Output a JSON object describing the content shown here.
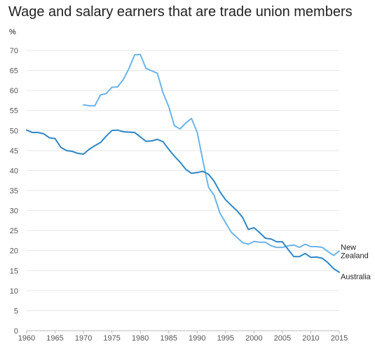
{
  "chart_data": {
    "type": "line",
    "title": "Wage and salary earners that are trade union members",
    "ylabel": "%",
    "xlabel": "",
    "xlim": [
      1960,
      2015
    ],
    "ylim": [
      0,
      70
    ],
    "x_ticks": [
      1960,
      1965,
      1970,
      1975,
      1980,
      1985,
      1990,
      1995,
      2000,
      2005,
      2010,
      2015
    ],
    "y_ticks": [
      0,
      5,
      10,
      15,
      20,
      25,
      30,
      35,
      40,
      45,
      50,
      55,
      60,
      65,
      70
    ],
    "grid": "horizontal",
    "series": [
      {
        "name": "New Zealand",
        "label_lines": [
          "New",
          "Zealand"
        ],
        "color": "#6cb4e8",
        "x": [
          1970,
          1971,
          1972,
          1973,
          1974,
          1975,
          1976,
          1977,
          1978,
          1979,
          1980,
          1981,
          1982,
          1983,
          1984,
          1985,
          1986,
          1987,
          1988,
          1989,
          1990,
          1991,
          1992,
          1993,
          1994,
          1995,
          1996,
          1997,
          1998,
          1999,
          2000,
          2001,
          2002,
          2003,
          2004,
          2005,
          2006,
          2007,
          2008,
          2009,
          2010,
          2011,
          2012,
          2013,
          2014,
          2015
        ],
        "values": [
          56.4,
          56.2,
          56.2,
          58.9,
          59.2,
          60.8,
          60.9,
          62.7,
          65.5,
          68.9,
          69.0,
          65.5,
          64.9,
          64.3,
          59.4,
          56.0,
          51.2,
          50.4,
          51.9,
          53.0,
          49.6,
          42.5,
          35.8,
          33.8,
          29.4,
          27.0,
          24.6,
          23.3,
          22.0,
          21.6,
          22.3,
          22.1,
          22.1,
          21.2,
          20.8,
          20.8,
          21.2,
          21.4,
          20.8,
          21.6,
          21.0,
          21.0,
          20.8,
          19.8,
          18.8,
          19.9
        ]
      },
      {
        "name": "Australia",
        "label_lines": [
          "Australia"
        ],
        "color": "#2f87c6",
        "x": [
          1960,
          1961,
          1962,
          1963,
          1964,
          1965,
          1966,
          1967,
          1968,
          1969,
          1970,
          1971,
          1972,
          1973,
          1974,
          1975,
          1976,
          1977,
          1978,
          1979,
          1980,
          1981,
          1982,
          1983,
          1984,
          1985,
          1986,
          1987,
          1988,
          1989,
          1990,
          1991,
          1992,
          1993,
          1994,
          1995,
          1996,
          1997,
          1998,
          1999,
          2000,
          2001,
          2002,
          2003,
          2004,
          2005,
          2006,
          2007,
          2008,
          2009,
          2010,
          2011,
          2012,
          2013,
          2014,
          2015
        ],
        "values": [
          50.1,
          49.5,
          49.5,
          49.2,
          48.2,
          48.0,
          45.8,
          45.0,
          44.8,
          44.3,
          44.1,
          45.3,
          46.2,
          47.0,
          48.6,
          50.0,
          50.1,
          49.7,
          49.6,
          49.5,
          48.4,
          47.3,
          47.4,
          47.8,
          47.2,
          45.3,
          43.6,
          42.1,
          40.3,
          39.3,
          39.5,
          39.8,
          39.1,
          37.3,
          34.7,
          32.7,
          31.3,
          30.0,
          28.3,
          25.3,
          25.7,
          24.5,
          23.1,
          22.9,
          22.2,
          22.2,
          20.3,
          18.5,
          18.5,
          19.3,
          18.3,
          18.4,
          18.1,
          17.0,
          15.5,
          14.6
        ]
      }
    ]
  }
}
